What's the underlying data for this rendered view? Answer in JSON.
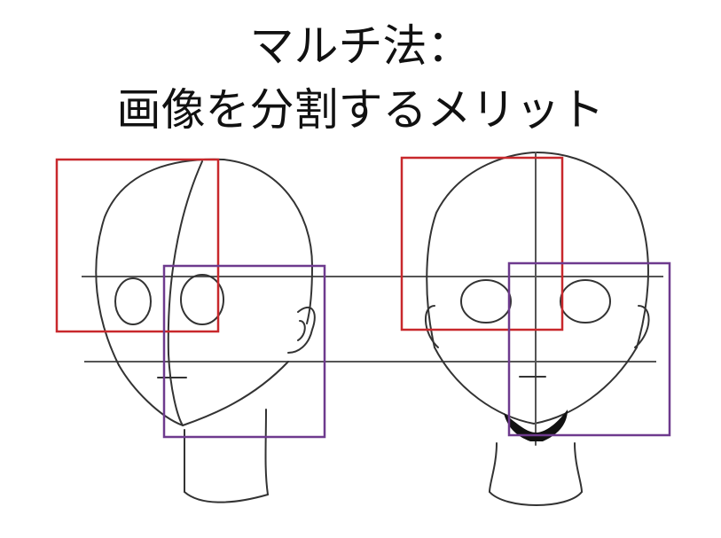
{
  "title": {
    "line1": "マルチ法：",
    "line2": "画像を分割するメリット"
  },
  "colors": {
    "text": "#111111",
    "sketch_line": "#333333",
    "guide_line": "#555555",
    "box_upper": "#c8282c",
    "box_lower": "#6e3a8e"
  },
  "figures": [
    {
      "name": "three-quarter-view-head",
      "boxes": [
        "red-box",
        "purple-box"
      ]
    },
    {
      "name": "front-view-head",
      "boxes": [
        "red-box",
        "purple-box"
      ]
    }
  ]
}
